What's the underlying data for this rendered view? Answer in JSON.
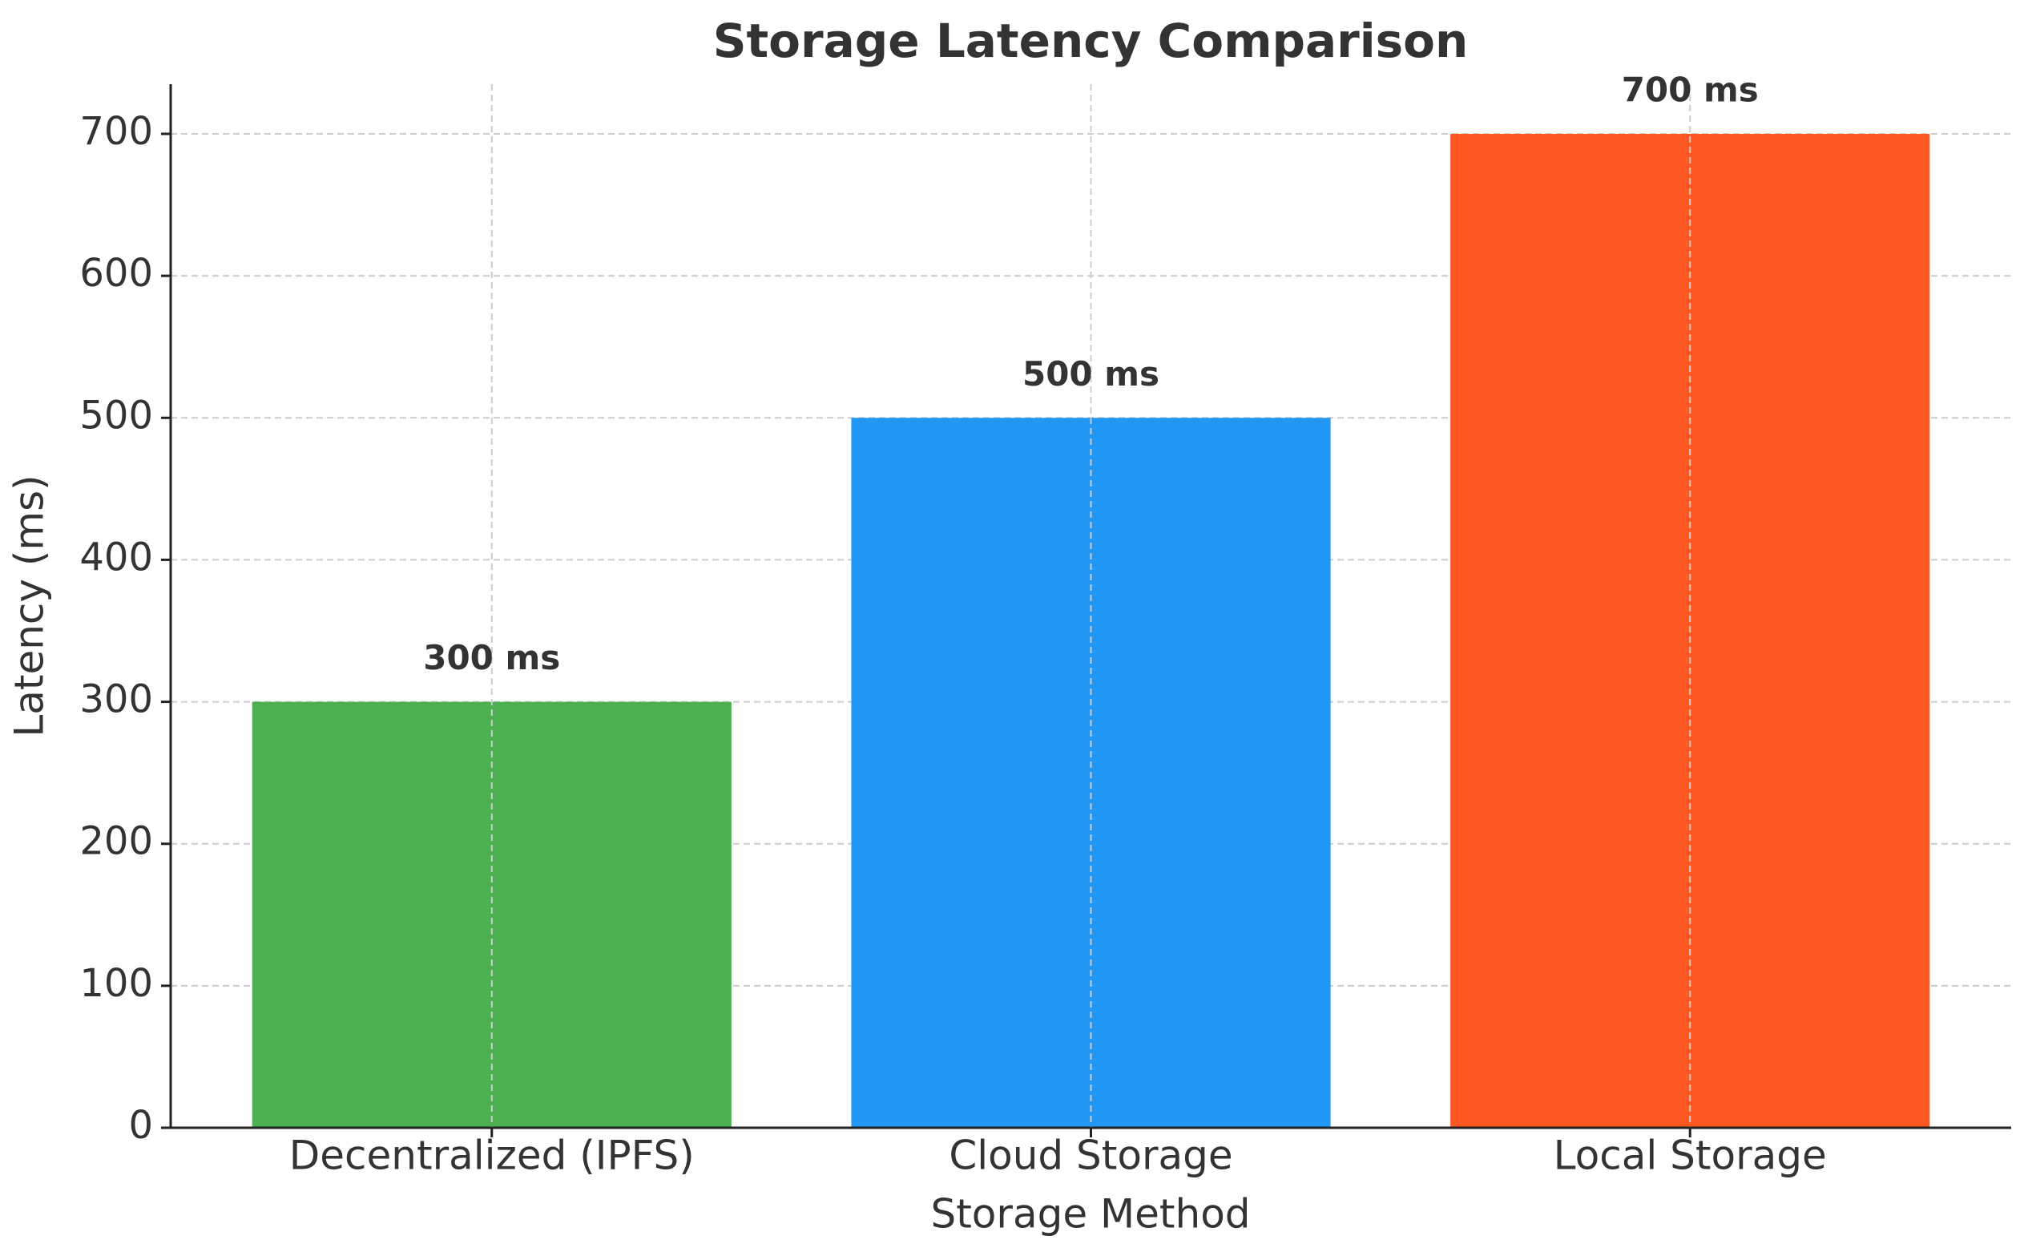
{
  "chart_data": {
    "type": "bar",
    "title": "Storage Latency Comparison",
    "x_label": "Storage Method",
    "y_label": "Latency (ms)",
    "categories": [
      "Decentralized (IPFS)",
      "Cloud Storage",
      "Local Storage"
    ],
    "values": [
      300,
      500,
      700
    ],
    "value_labels": [
      "300 ms",
      "500 ms",
      "700 ms"
    ],
    "colors": [
      "#4caf50",
      "#2196f3",
      "#ff5722"
    ],
    "ylim": [
      0,
      735
    ],
    "yticks": [
      0,
      100,
      200,
      300,
      400,
      500,
      600,
      700
    ],
    "grid": true
  }
}
